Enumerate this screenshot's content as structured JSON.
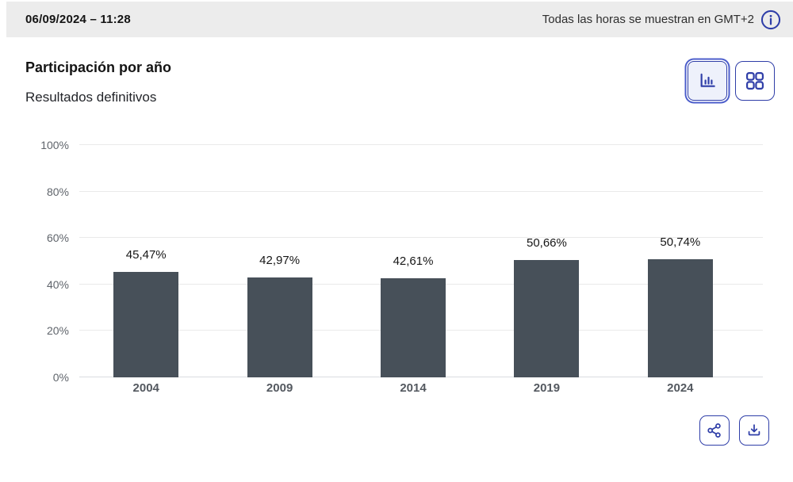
{
  "topbar": {
    "datetime": "06/09/2024 – 11:28",
    "timezone_note": "Todas las horas se muestran en GMT+2",
    "info_icon": "info-icon"
  },
  "header": {
    "title": "Participación por año",
    "subtitle": "Resultados definitivos",
    "view_toggles": [
      {
        "name": "bar-chart-view",
        "icon": "bar-chart-icon",
        "selected": true
      },
      {
        "name": "grid-view",
        "icon": "grid-icon",
        "selected": false
      }
    ]
  },
  "chart_data": {
    "type": "bar",
    "categories": [
      "2004",
      "2009",
      "2014",
      "2019",
      "2024"
    ],
    "values": [
      45.47,
      42.97,
      42.61,
      50.66,
      50.74
    ],
    "value_labels": [
      "45,47%",
      "42,97%",
      "42,61%",
      "50,66%",
      "50,74%"
    ],
    "title": "Participación por año",
    "xlabel": "",
    "ylabel": "",
    "ylim": [
      0,
      100
    ],
    "yticks": [
      0,
      20,
      40,
      60,
      80,
      100
    ],
    "ytick_labels": [
      "0%",
      "20%",
      "40%",
      "60%",
      "80%",
      "100%"
    ],
    "grid": "horizontal",
    "legend": "none",
    "bar_color": "#475059"
  },
  "footer_actions": [
    {
      "name": "share",
      "icon": "share-icon"
    },
    {
      "name": "download",
      "icon": "download-icon"
    }
  ],
  "colors": {
    "accent_blue": "#2f3ea8",
    "focus_ring_blue": "#4c5ecb",
    "bar": "#475059",
    "topbar_bg": "#ececec",
    "gridline": "#eaeaea"
  }
}
